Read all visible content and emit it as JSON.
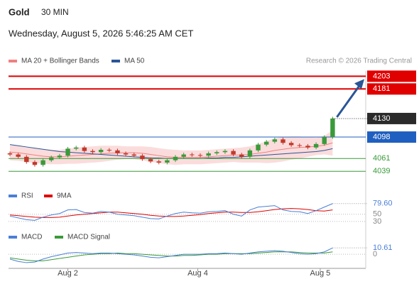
{
  "header": {
    "title": "Gold",
    "interval": "30 MIN",
    "timestamp": "Wednesday, August 5, 2026 5:46:25 AM CET",
    "source": "Research © 2026 Trading Central"
  },
  "chart_data": [
    {
      "type": "candlestick",
      "legend": [
        {
          "name": "MA 20 + Bollinger Bands",
          "color": "#f08080"
        },
        {
          "name": "MA 50",
          "color": "#2a5597"
        }
      ],
      "open": [
        4070,
        4068,
        4064,
        4055,
        4050,
        4058,
        4063,
        4066,
        4078,
        4080,
        4074,
        4072,
        4076,
        4075,
        4070,
        4068,
        4066,
        4060,
        4056,
        4054,
        4058,
        4064,
        4068,
        4067,
        4066,
        4070,
        4072,
        4074,
        4068,
        4064,
        4075,
        4085,
        4090,
        4094,
        4088,
        4084,
        4083,
        4080,
        4086,
        4098
      ],
      "high": [
        4073,
        4071,
        4067,
        4058,
        4061,
        4066,
        4069,
        4081,
        4083,
        4083,
        4077,
        4079,
        4079,
        4078,
        4073,
        4071,
        4069,
        4063,
        4059,
        4061,
        4067,
        4071,
        4071,
        4070,
        4073,
        4075,
        4077,
        4077,
        4071,
        4078,
        4088,
        4093,
        4097,
        4097,
        4091,
        4087,
        4086,
        4089,
        4101,
        4133
      ],
      "low": [
        4065,
        4061,
        4052,
        4047,
        4047,
        4055,
        4060,
        4063,
        4075,
        4071,
        4069,
        4069,
        4072,
        4067,
        4065,
        4063,
        4057,
        4053,
        4051,
        4051,
        4055,
        4061,
        4064,
        4063,
        4063,
        4067,
        4069,
        4065,
        4061,
        4061,
        4072,
        4082,
        4087,
        4085,
        4081,
        4080,
        4077,
        4077,
        4083,
        4095
      ],
      "close": [
        4068,
        4064,
        4055,
        4050,
        4058,
        4063,
        4066,
        4078,
        4080,
        4074,
        4072,
        4076,
        4075,
        4070,
        4068,
        4066,
        4060,
        4056,
        4054,
        4058,
        4064,
        4068,
        4067,
        4066,
        4070,
        4072,
        4074,
        4068,
        4064,
        4075,
        4085,
        4090,
        4094,
        4088,
        4084,
        4083,
        4080,
        4086,
        4098,
        4130
      ],
      "ma20": [
        4072,
        4071,
        4069,
        4067,
        4065,
        4064,
        4064,
        4065,
        4066,
        4067,
        4068,
        4069,
        4070,
        4071,
        4071,
        4071,
        4070,
        4068,
        4066,
        4064,
        4063,
        4063,
        4063,
        4063,
        4064,
        4065,
        4066,
        4067,
        4067,
        4068,
        4070,
        4072,
        4075,
        4077,
        4079,
        4080,
        4081,
        4082,
        4084,
        4088
      ],
      "band_upper": [
        4084,
        4083,
        4081,
        4079,
        4077,
        4076,
        4076,
        4078,
        4080,
        4081,
        4082,
        4083,
        4083,
        4083,
        4082,
        4082,
        4082,
        4081,
        4079,
        4077,
        4076,
        4075,
        4075,
        4075,
        4076,
        4077,
        4078,
        4079,
        4080,
        4082,
        4086,
        4091,
        4096,
        4098,
        4099,
        4099,
        4098,
        4097,
        4100,
        4110
      ],
      "band_lower": [
        4058,
        4057,
        4055,
        4053,
        4052,
        4051,
        4051,
        4052,
        4052,
        4053,
        4054,
        4055,
        4057,
        4059,
        4060,
        4060,
        4058,
        4055,
        4053,
        4051,
        4050,
        4051,
        4051,
        4051,
        4052,
        4053,
        4054,
        4055,
        4054,
        4054,
        4054,
        4053,
        4054,
        4056,
        4059,
        4061,
        4064,
        4067,
        4068,
        4066
      ],
      "ma50": [
        4085,
        4083,
        4081,
        4079,
        4077,
        4075,
        4073,
        4072,
        4071,
        4070,
        4069,
        4068,
        4067,
        4066,
        4065,
        4064,
        4063,
        4062,
        4062,
        4061,
        4061,
        4061,
        4061,
        4061,
        4062,
        4062,
        4063,
        4063,
        4064,
        4065,
        4066,
        4067,
        4068,
        4069,
        4070,
        4071,
        4072,
        4073,
        4075,
        4078
      ],
      "levels": [
        {
          "value": 4203,
          "color": "#e00000",
          "boxed": true
        },
        {
          "value": 4181,
          "color": "#e00000",
          "boxed": true
        },
        {
          "value": 4098,
          "color": "#1f5fbf",
          "boxed": true
        },
        {
          "value": 4061,
          "color": "#3a9a3a",
          "boxed": false
        },
        {
          "value": 4039,
          "color": "#3a9a3a",
          "boxed": false
        }
      ],
      "up_color": "#3a9a3a",
      "down_color": "#c0392b",
      "xlim": [
        0,
        43
      ],
      "ylim": [
        4016,
        4212
      ],
      "xticks": [
        {
          "value": 7,
          "label": "Aug 2"
        },
        {
          "value": 22.7,
          "label": "Aug 4"
        },
        {
          "value": 37.5,
          "label": "Aug 5"
        }
      ]
    },
    {
      "type": "line",
      "title": "RSI",
      "series": [
        {
          "name": "RSI",
          "color": "#4a7fd6",
          "values": [
            45,
            40,
            35,
            33,
            42,
            48,
            52,
            62,
            63,
            55,
            53,
            58,
            56,
            50,
            48,
            46,
            42,
            38,
            37,
            45,
            52,
            56,
            54,
            53,
            57,
            58,
            60,
            50,
            45,
            62,
            70,
            72,
            74,
            62,
            58,
            57,
            52,
            60,
            70,
            79.6
          ],
          "value_labels": [
            null,
            null,
            null,
            null,
            null,
            null,
            null,
            null,
            null,
            null,
            null,
            null,
            null,
            null,
            null,
            null,
            null,
            null,
            null,
            null,
            null,
            null,
            null,
            null,
            null,
            null,
            null,
            null,
            null,
            null,
            null,
            null,
            null,
            null,
            null,
            null,
            null,
            null,
            null,
            "79.60"
          ]
        },
        {
          "name": "9MA",
          "color": "#e00000",
          "values": [
            48,
            46,
            44,
            42,
            41,
            41,
            42,
            45,
            48,
            50,
            52,
            54,
            56,
            56,
            54,
            52,
            50,
            47,
            45,
            44,
            44,
            45,
            47,
            49,
            52,
            54,
            56,
            56,
            55,
            55,
            57,
            60,
            63,
            65,
            66,
            65,
            63,
            60,
            59,
            62
          ]
        }
      ],
      "ylim": [
        20,
        85
      ],
      "yticks": [
        30,
        50
      ]
    },
    {
      "type": "line",
      "title": "MACD",
      "series": [
        {
          "name": "MACD",
          "color": "#4a7fd6",
          "values": [
            -8,
            -12,
            -14,
            -13,
            -8,
            -4,
            -1,
            2,
            3,
            2,
            1,
            2,
            2,
            1,
            0,
            -1,
            -3,
            -5,
            -6,
            -4,
            -2,
            0,
            0,
            0,
            1,
            1,
            2,
            1,
            0,
            2,
            4,
            5,
            6,
            5,
            3,
            1,
            0,
            1,
            4,
            10.61
          ]
        },
        {
          "name": "MACD Signal",
          "color": "#3a9a3a",
          "values": [
            -6,
            -8,
            -10,
            -11,
            -11,
            -9,
            -7,
            -5,
            -3,
            -1,
            0,
            1,
            1,
            2,
            1,
            1,
            0,
            -1,
            -2,
            -3,
            -3,
            -2,
            -2,
            -1,
            0,
            0,
            1,
            1,
            1,
            1,
            2,
            3,
            4,
            4,
            4,
            3,
            2,
            2,
            2,
            4
          ]
        }
      ],
      "ylim": [
        -20,
        25
      ],
      "yticks": [
        0
      ]
    }
  ]
}
